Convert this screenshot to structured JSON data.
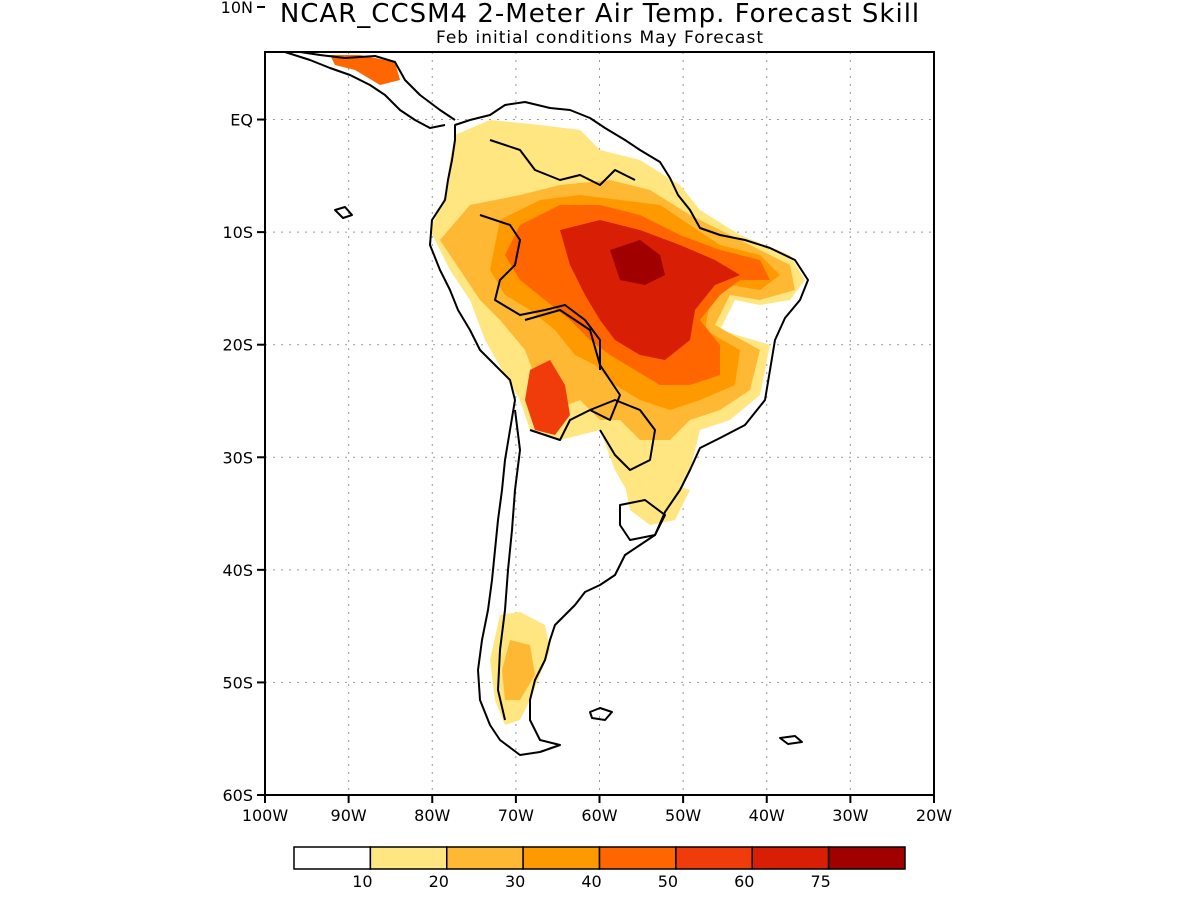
{
  "header": {
    "title": "NCAR_CCSM4 2-Meter Air Temp. Forecast Skill",
    "subtitle": "Feb initial conditions  May Forecast"
  },
  "map": {
    "lon_range": [
      -100,
      -20
    ],
    "lat_range": [
      -60,
      6
    ],
    "gridlines": "dotted"
  },
  "axes": {
    "lat_ticks": [
      {
        "value": 10,
        "label": "10N"
      },
      {
        "value": 0,
        "label": "EQ"
      },
      {
        "value": -10,
        "label": "10S"
      },
      {
        "value": -20,
        "label": "20S"
      },
      {
        "value": -30,
        "label": "30S"
      },
      {
        "value": -40,
        "label": "40S"
      },
      {
        "value": -50,
        "label": "50S"
      },
      {
        "value": -60,
        "label": "60S"
      }
    ],
    "lon_ticks": [
      {
        "value": -100,
        "label": "100W"
      },
      {
        "value": -90,
        "label": "90W"
      },
      {
        "value": -80,
        "label": "80W"
      },
      {
        "value": -70,
        "label": "70W"
      },
      {
        "value": -60,
        "label": "60W"
      },
      {
        "value": -50,
        "label": "50W"
      },
      {
        "value": -40,
        "label": "40W"
      },
      {
        "value": -30,
        "label": "30W"
      },
      {
        "value": -20,
        "label": "20W"
      }
    ]
  },
  "colorbar": {
    "colors": [
      "#ffffff",
      "#ffe680",
      "#ffb833",
      "#ff9900",
      "#ff6600",
      "#f03c0a",
      "#d81e05",
      "#a00000"
    ],
    "labels": [
      "10",
      "20",
      "30",
      "40",
      "50",
      "60",
      "75"
    ]
  }
}
